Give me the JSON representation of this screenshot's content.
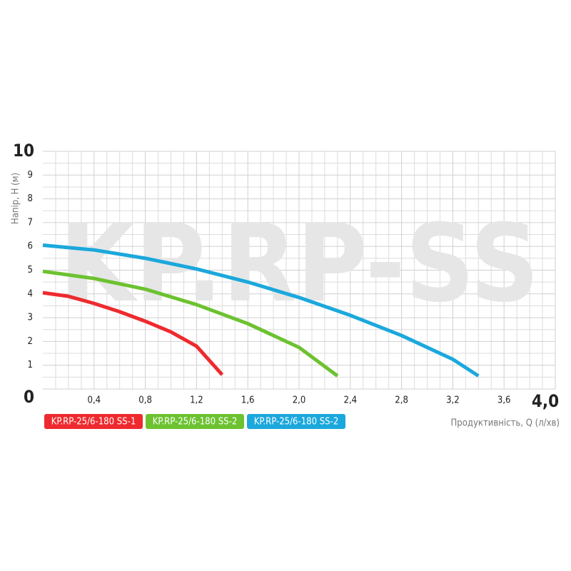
{
  "chart_data": {
    "type": "line",
    "watermark": "KP.RP-SS",
    "y_label": "Напір, Н (м)",
    "x_label": "Продуктивність, Q (л/хв)",
    "xlim": [
      0,
      4.0
    ],
    "ylim": [
      0,
      10
    ],
    "xticks": [
      {
        "value": 0.4,
        "label": "0,4"
      },
      {
        "value": 0.8,
        "label": "0,8"
      },
      {
        "value": 1.2,
        "label": "1,2"
      },
      {
        "value": 1.6,
        "label": "1,6"
      },
      {
        "value": 2.0,
        "label": "2,0"
      },
      {
        "value": 2.4,
        "label": "2,4"
      },
      {
        "value": 2.8,
        "label": "2,8"
      },
      {
        "value": 3.2,
        "label": "3,2"
      },
      {
        "value": 3.6,
        "label": "3,6"
      },
      {
        "value": 4.0,
        "label": "4,0"
      }
    ],
    "yticks": [
      0,
      1,
      2,
      3,
      4,
      5,
      6,
      7,
      8,
      9,
      10
    ],
    "grid": true,
    "legend": "bottom",
    "series": [
      {
        "name": "KP.RP-25/6-180 SS-1",
        "color": "#ee2a2e",
        "x": [
          0,
          0.2,
          0.4,
          0.6,
          0.8,
          1.0,
          1.2,
          1.4
        ],
        "values": [
          4.05,
          3.9,
          3.6,
          3.25,
          2.85,
          2.4,
          1.8,
          0.6
        ]
      },
      {
        "name": "KP.RP-25/6-180 SS-2",
        "color": "#6cc230",
        "x": [
          0,
          0.4,
          0.8,
          1.2,
          1.6,
          2.0,
          2.3
        ],
        "values": [
          4.95,
          4.65,
          4.2,
          3.55,
          2.75,
          1.75,
          0.55
        ]
      },
      {
        "name": "KP.RP-25/6-180 SS-2",
        "color": "#1ba8dc",
        "x": [
          0,
          0.4,
          0.8,
          1.2,
          1.6,
          2.0,
          2.4,
          2.8,
          3.2,
          3.4
        ],
        "values": [
          6.05,
          5.85,
          5.5,
          5.05,
          4.5,
          3.85,
          3.1,
          2.25,
          1.25,
          0.55
        ]
      }
    ]
  }
}
